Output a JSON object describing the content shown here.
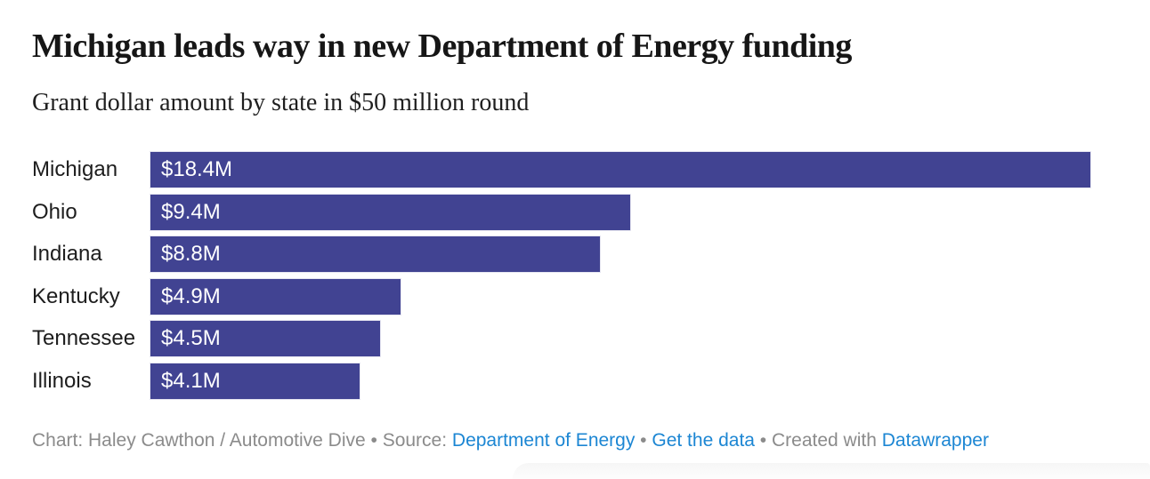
{
  "chart_data": {
    "type": "bar",
    "orientation": "horizontal",
    "title": "Michigan leads way in new Department of Energy funding",
    "subtitle": "Grant dollar amount by state in $50 million round",
    "categories": [
      "Michigan",
      "Ohio",
      "Indiana",
      "Kentucky",
      "Tennessee",
      "Illinois"
    ],
    "values": [
      18.4,
      9.4,
      8.8,
      4.9,
      4.5,
      4.1
    ],
    "value_labels": [
      "$18.4M",
      "$9.4M",
      "$8.8M",
      "$4.9M",
      "$4.5M",
      "$4.1M"
    ],
    "xlim": [
      0,
      18.4
    ],
    "xlabel": "",
    "ylabel": "",
    "grid": false,
    "legend": false,
    "value_label_position": "inside-start"
  },
  "colors": {
    "bar": "#414392",
    "bar_value_text": "#ffffff",
    "title_text": "#161616",
    "label_text": "#1d1d1d",
    "footer_text": "#8b8b8b",
    "link": "#1c86d3"
  },
  "footer": {
    "parts": [
      {
        "type": "text",
        "text": "Chart: Haley Cawthon / Automotive Dive • Source: "
      },
      {
        "type": "link",
        "text": "Department of Energy"
      },
      {
        "type": "text",
        "text": " • "
      },
      {
        "type": "link",
        "text": "Get the data"
      },
      {
        "type": "text",
        "text": " • Created with "
      },
      {
        "type": "link",
        "text": "Datawrapper"
      }
    ]
  }
}
